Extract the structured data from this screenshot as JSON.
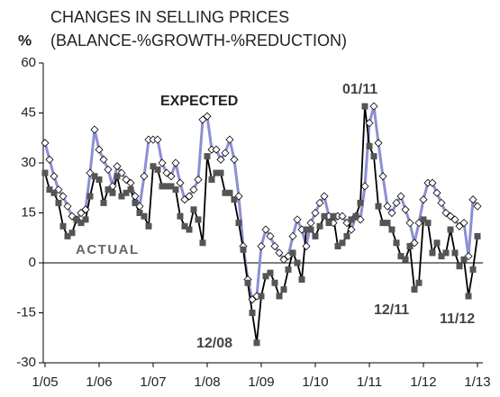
{
  "chart_data": {
    "type": "line",
    "title": "CHANGES IN SELLING PRICES",
    "subtitle": "(BALANCE-%GROWTH-%REDUCTION)",
    "y_label": "%",
    "annotations": [
      "01/11",
      "12/08",
      "12/11",
      "11/12"
    ],
    "categories": [
      "1/05",
      null,
      null,
      null,
      null,
      null,
      null,
      null,
      null,
      null,
      null,
      null,
      "1/06",
      null,
      null,
      null,
      null,
      null,
      null,
      null,
      null,
      null,
      null,
      null,
      "1/07",
      null,
      null,
      null,
      null,
      null,
      null,
      null,
      null,
      null,
      null,
      null,
      "1/08",
      null,
      null,
      null,
      null,
      null,
      null,
      null,
      null,
      null,
      null,
      null,
      "1/09",
      null,
      null,
      null,
      null,
      null,
      null,
      null,
      null,
      null,
      null,
      null,
      "1/10",
      null,
      null,
      null,
      null,
      null,
      null,
      null,
      null,
      null,
      null,
      null,
      "1/11",
      null,
      null,
      null,
      null,
      null,
      null,
      null,
      null,
      null,
      null,
      null,
      "1/12",
      null,
      null,
      null,
      null,
      null,
      null,
      null,
      null,
      null,
      null,
      null,
      "1/13"
    ],
    "series": [
      {
        "name": "EXPECTED",
        "color": "#8c8fd2",
        "marker_color": "#ffffff",
        "values": [
          36,
          31,
          26,
          22,
          20,
          17,
          14,
          13,
          15,
          16,
          27,
          40,
          34,
          31,
          28,
          23,
          29,
          27,
          25,
          24,
          20,
          17,
          26,
          37,
          37,
          37,
          30,
          27,
          26,
          30,
          24,
          19,
          20,
          22,
          25,
          43,
          44,
          34,
          34,
          31,
          33,
          37,
          31,
          20,
          5,
          -5,
          -11,
          -10,
          5,
          10,
          8,
          5,
          3,
          1,
          2,
          8,
          13,
          10,
          5,
          12,
          15,
          18,
          20,
          14,
          12,
          14,
          14,
          12,
          10,
          14,
          13,
          23,
          42,
          47,
          36,
          26,
          17,
          15,
          18,
          20,
          16,
          12,
          6,
          12,
          19,
          24,
          24,
          21,
          18,
          15,
          14,
          13,
          11,
          12,
          2,
          19,
          17
        ]
      },
      {
        "name": "ACTUAL",
        "color": "#000000",
        "marker_color": "#555555",
        "values": [
          27,
          22,
          21,
          18,
          11,
          8,
          9,
          13,
          12,
          13,
          20,
          26,
          25,
          18,
          22,
          21,
          26,
          20,
          21,
          22,
          18,
          15,
          14,
          11,
          29,
          28,
          23,
          23,
          23,
          22,
          14,
          11,
          10,
          16,
          13,
          6,
          32,
          25,
          27,
          27,
          21,
          21,
          19,
          12,
          4,
          -6,
          -15,
          -24,
          -10,
          -4,
          -3,
          -6,
          -10,
          -8,
          -2,
          3,
          0,
          -5,
          10,
          10,
          8,
          11,
          14,
          12,
          14,
          5,
          6,
          8,
          13,
          14,
          18,
          47,
          35,
          32,
          17,
          12,
          12,
          10,
          6,
          2,
          1,
          5,
          -8,
          -6,
          13,
          12,
          3,
          6,
          2,
          3,
          10,
          3,
          -1,
          1,
          -10,
          -2,
          8
        ]
      }
    ],
    "ylim": [
      -30,
      60
    ],
    "yticks": [
      -30,
      -15,
      0,
      15,
      30,
      45,
      60
    ],
    "grid": false
  }
}
